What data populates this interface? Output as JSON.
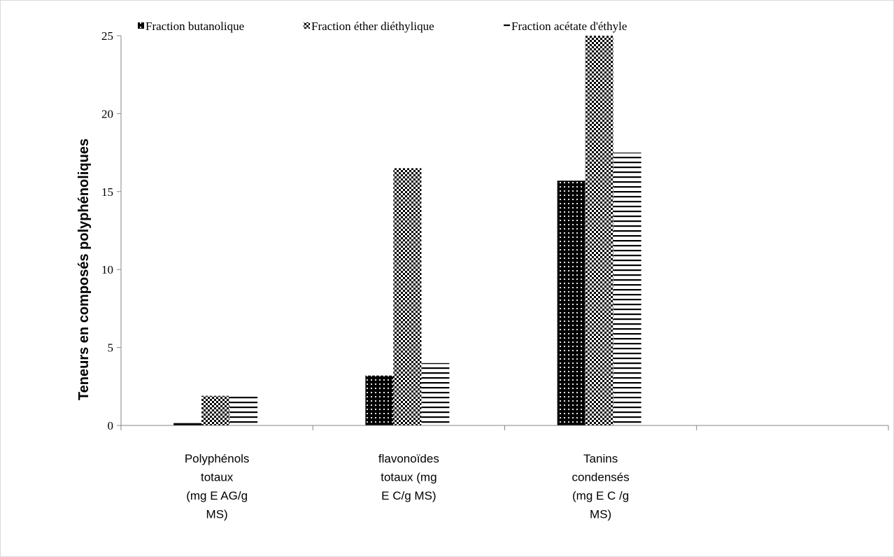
{
  "chart_data": {
    "type": "bar",
    "title": "",
    "ylabel": "Teneurs en composés polyphénoliques",
    "xlabel": "",
    "ylim": [
      0,
      25
    ],
    "yticks": [
      0,
      5,
      10,
      15,
      20,
      25
    ],
    "grid": false,
    "legend_position": "top",
    "categories": [
      [
        "Polyphénols",
        "totaux",
        "(mg E AG/g",
        "MS)"
      ],
      [
        "flavonoïdes",
        "totaux   (mg",
        "E C/g MS)"
      ],
      [
        "Tanins",
        "condensés",
        "(mg E C /g",
        "MS)"
      ],
      []
    ],
    "series": [
      {
        "name": "Fraction butanolique",
        "pattern": "dots-on-black",
        "values": [
          0.15,
          3.2,
          15.7,
          null
        ]
      },
      {
        "name": "Fraction éther diéthylique",
        "pattern": "checker",
        "values": [
          1.9,
          16.5,
          25.0,
          null
        ]
      },
      {
        "name": "Fraction acétate d'éthyle",
        "pattern": "horizontal-lines",
        "values": [
          2.0,
          4.0,
          17.5,
          null
        ]
      }
    ],
    "colors": {
      "foreground": "#000000",
      "background": "#ffffff",
      "frame": "#d9d9d9"
    }
  }
}
